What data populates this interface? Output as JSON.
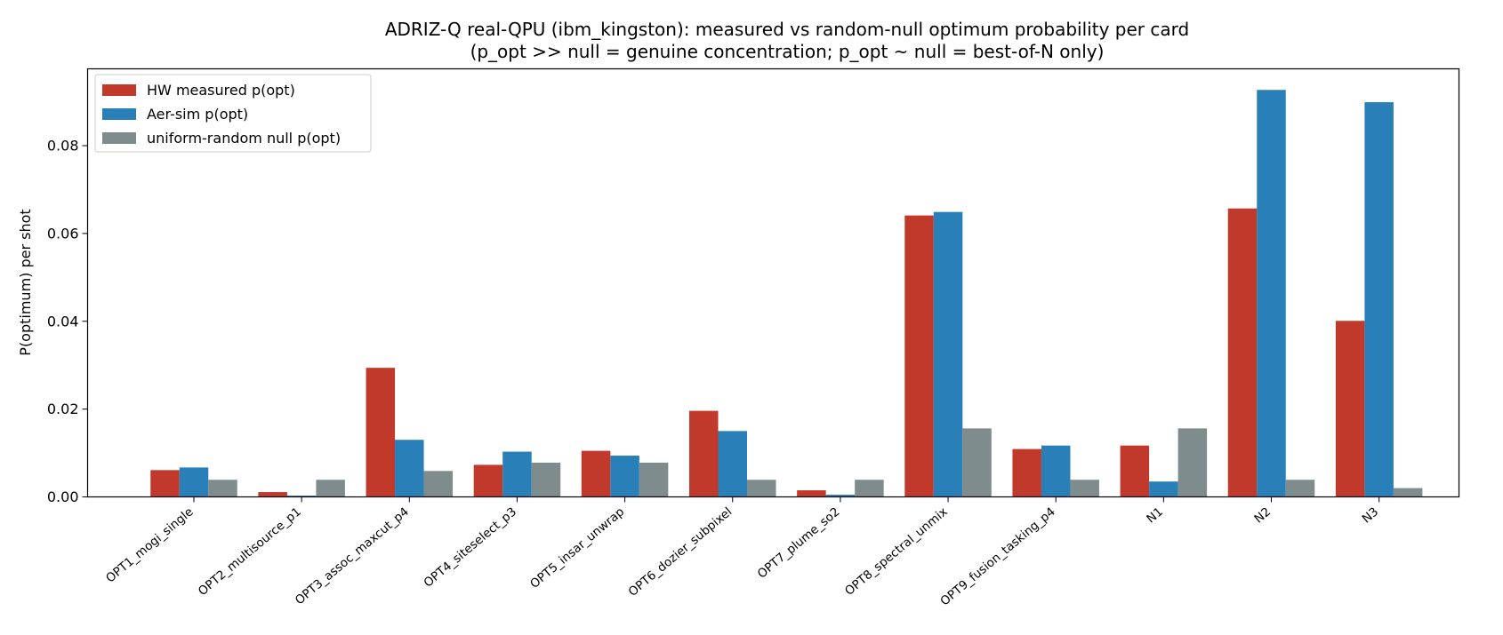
{
  "chart_data": {
    "type": "bar",
    "title": "ADRIZ-Q real-QPU (ibm_kingston): measured vs random-null optimum probability per card",
    "subtitle": "(p_opt >> null = genuine concentration; p_opt ~ null = best-of-N only)",
    "xlabel": "",
    "ylabel": "P(optimum) per shot",
    "ylim": [
      0,
      0.0975
    ],
    "yticks": [
      0.0,
      0.02,
      0.04,
      0.06,
      0.08
    ],
    "ytick_labels": [
      "0.00",
      "0.02",
      "0.04",
      "0.06",
      "0.08"
    ],
    "grid": false,
    "legend_position": "top-left",
    "categories": [
      "OPT1_mogi_single",
      "OPT2_multisource_p1",
      "OPT3_assoc_maxcut_p4",
      "OPT4_siteselect_p3",
      "OPT5_insar_unwrap",
      "OPT6_dozier_subpixel",
      "OPT7_plume_so2",
      "OPT8_spectral_unmix",
      "OPT9_fusion_tasking_p4",
      "N1",
      "N2",
      "N3"
    ],
    "series": [
      {
        "name": "HW measured p(opt)",
        "color": "#c0392b",
        "values": [
          0.0061,
          0.0011,
          0.0294,
          0.0073,
          0.0105,
          0.0196,
          0.0015,
          0.0641,
          0.0109,
          0.0117,
          0.0657,
          0.0401
        ]
      },
      {
        "name": "Aer-sim p(opt)",
        "color": "#2980b9",
        "values": [
          0.0067,
          0.0003,
          0.013,
          0.0103,
          0.0094,
          0.015,
          0.0005,
          0.0649,
          0.0117,
          0.0035,
          0.0927,
          0.0899
        ]
      },
      {
        "name": "uniform-random null p(opt)",
        "color": "#7f8c8d",
        "values": [
          0.0039,
          0.0039,
          0.0059,
          0.0078,
          0.0078,
          0.0039,
          0.0039,
          0.0156,
          0.0039,
          0.0156,
          0.0039,
          0.002
        ]
      }
    ]
  }
}
